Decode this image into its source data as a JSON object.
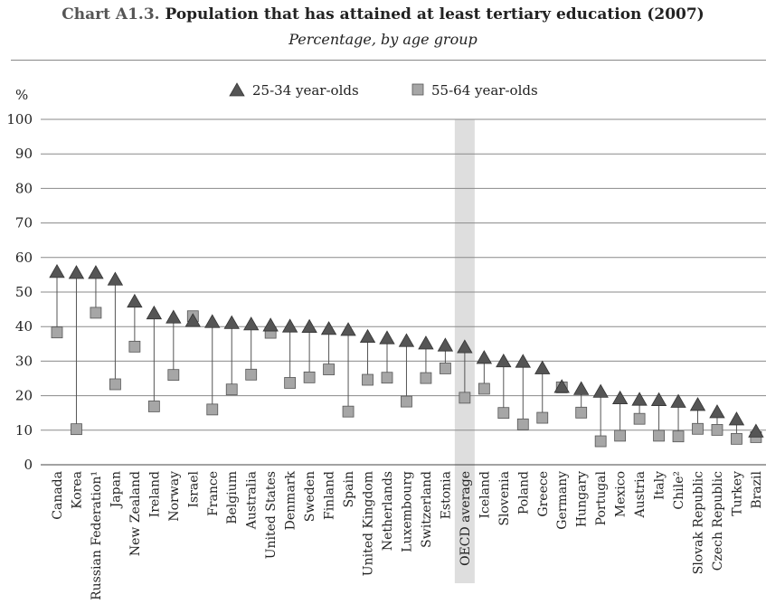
{
  "header": {
    "chart_number": "Chart A1.3.",
    "title": "Population that has attained at least tertiary education (2007)",
    "subtitle": "Percentage, by age group"
  },
  "chart_data": {
    "type": "scatter",
    "ylabel": "%",
    "ylim": [
      0,
      100
    ],
    "yticks": [
      0,
      10,
      20,
      30,
      40,
      50,
      60,
      70,
      80,
      90,
      100
    ],
    "grid": true,
    "legend_placement": "top",
    "highlight_category": "OECD average",
    "categories": [
      "Canada",
      "Korea",
      "Russian Federation¹",
      "Japan",
      "New Zealand",
      "Ireland",
      "Norway",
      "Israel",
      "France",
      "Belgium",
      "Australia",
      "United States",
      "Denmark",
      "Sweden",
      "Finland",
      "Spain",
      "United Kingdom",
      "Netherlands",
      "Luxembourg",
      "Switzerland",
      "Estonia",
      "OECD average",
      "Iceland",
      "Slovenia",
      "Poland",
      "Greece",
      "Germany",
      "Hungary",
      "Portugal",
      "Mexico",
      "Austria",
      "Italy",
      "Chile²",
      "Slovak Republic",
      "Czech Republic",
      "Turkey",
      "Brazil"
    ],
    "series": [
      {
        "name": "25-34 year-olds",
        "marker": "triangle",
        "color": "#555555",
        "values": [
          55.8,
          55.5,
          55.5,
          53.6,
          47.2,
          43.8,
          42.6,
          41.6,
          41.3,
          41.0,
          40.6,
          40.3,
          40.0,
          39.9,
          39.3,
          39.0,
          37.0,
          36.6,
          35.8,
          35.1,
          34.5,
          34.0,
          30.9,
          29.9,
          29.8,
          27.9,
          22.5,
          21.9,
          21.1,
          19.2,
          18.8,
          18.7,
          18.2,
          17.3,
          15.2,
          13.1,
          9.6
        ]
      },
      {
        "name": "55-64 year-olds",
        "marker": "square",
        "color": "#a6a6a6",
        "values": [
          38.3,
          10.3,
          44.0,
          23.3,
          34.2,
          16.9,
          26.0,
          43.0,
          16.0,
          21.8,
          26.1,
          38.2,
          23.7,
          25.3,
          27.6,
          15.4,
          24.6,
          25.2,
          18.3,
          25.1,
          27.9,
          19.4,
          22.0,
          15.0,
          11.7,
          13.6,
          22.4,
          15.1,
          6.8,
          8.4,
          13.3,
          8.4,
          8.2,
          10.4,
          10.1,
          7.5,
          8.0
        ]
      }
    ]
  }
}
